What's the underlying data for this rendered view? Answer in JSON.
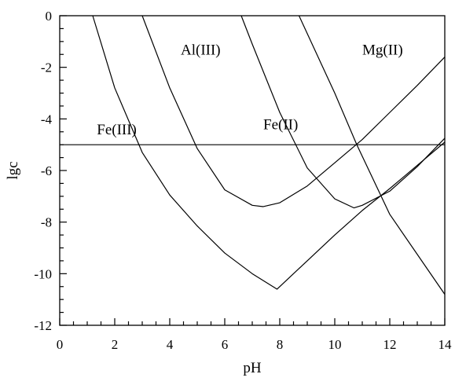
{
  "chart_data": {
    "type": "line",
    "title": "",
    "xlabel": "pH",
    "ylabel": "lgc",
    "xlim": [
      0,
      14
    ],
    "ylim": [
      -12,
      0
    ],
    "x_ticks": [
      0,
      2,
      4,
      6,
      8,
      10,
      12,
      14
    ],
    "y_ticks": [
      0,
      -2,
      -4,
      -6,
      -8,
      -10,
      -12
    ],
    "x_tick_labels": [
      "0",
      "2",
      "4",
      "6",
      "8",
      "10",
      "12",
      "14"
    ],
    "y_tick_labels": [
      "0",
      "-2",
      "-4",
      "-6",
      "-8",
      "-10",
      "-12"
    ],
    "x_minor_step": 0.5,
    "y_minor_step": 0.5,
    "grid": false,
    "colors": {
      "line": "#000000",
      "background": "#ffffff"
    },
    "series": [
      {
        "name": "Fe(III)",
        "x": [
          1.2,
          2.0,
          3.0,
          4.0,
          5.0,
          6.0,
          7.0,
          7.9,
          9.0,
          10.0,
          11.0,
          12.0,
          13.0,
          14.0
        ],
        "y": [
          0.0,
          -2.8,
          -5.3,
          -6.95,
          -8.15,
          -9.2,
          -10.0,
          -10.6,
          -9.5,
          -8.5,
          -7.55,
          -6.7,
          -5.8,
          -4.9
        ]
      },
      {
        "name": "Al(III)",
        "x": [
          3.0,
          4.0,
          5.0,
          6.0,
          7.0,
          7.4,
          8.0,
          9.0,
          10.0,
          11.0,
          12.0,
          13.0,
          14.0
        ],
        "y": [
          0.0,
          -2.8,
          -5.15,
          -6.75,
          -7.35,
          -7.4,
          -7.25,
          -6.6,
          -5.7,
          -4.8,
          -3.75,
          -2.7,
          -1.6
        ]
      },
      {
        "name": "Fe(II)",
        "x": [
          6.6,
          7.0,
          8.0,
          9.0,
          10.0,
          10.7,
          11.0,
          12.0,
          13.0,
          14.0
        ],
        "y": [
          0.0,
          -1.1,
          -3.75,
          -5.9,
          -7.1,
          -7.45,
          -7.35,
          -6.8,
          -5.85,
          -4.75
        ]
      },
      {
        "name": "Mg(II)",
        "x": [
          8.7,
          10.0,
          10.8,
          12.0,
          14.0
        ],
        "y": [
          0.0,
          -3.0,
          -5.0,
          -7.7,
          -10.8
        ]
      },
      {
        "name": "",
        "x": [
          0.0,
          14.0
        ],
        "y": [
          -5.0,
          -5.0
        ]
      }
    ],
    "annotations": [
      {
        "text": "Fe(III)",
        "x": 1.35,
        "y": -4.6
      },
      {
        "text": "Al(III)",
        "x": 4.4,
        "y": -1.5
      },
      {
        "text": "Fe(II)",
        "x": 7.4,
        "y": -4.4
      },
      {
        "text": "Mg(II)",
        "x": 11.0,
        "y": -1.5
      }
    ]
  }
}
